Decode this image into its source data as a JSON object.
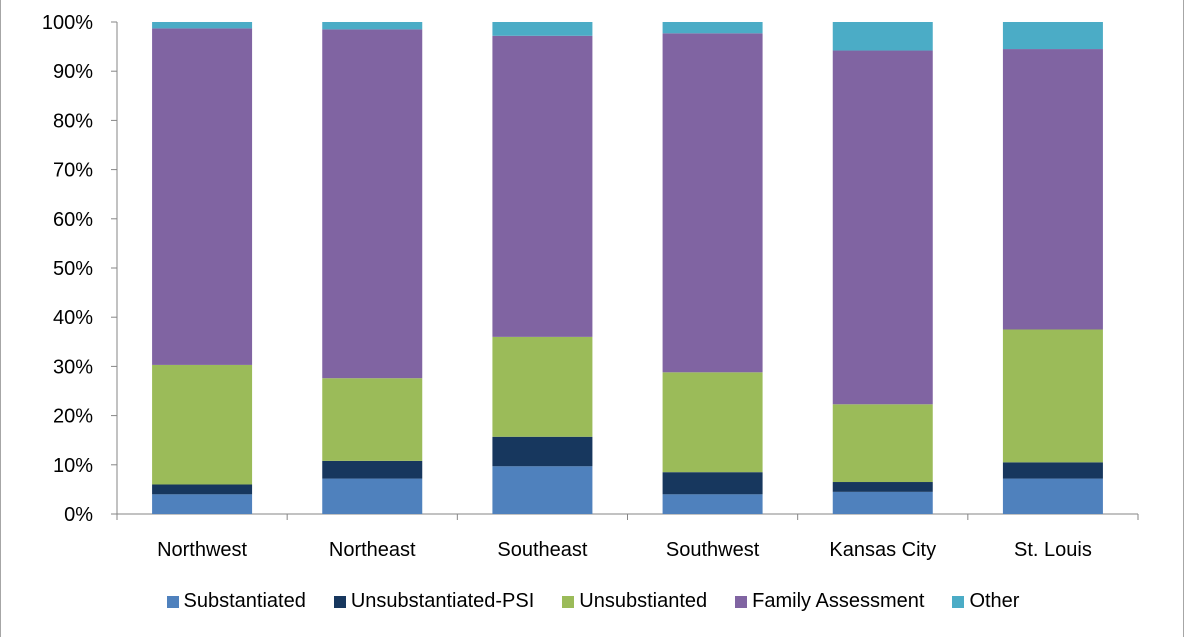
{
  "chart_data": {
    "type": "bar",
    "stacked": true,
    "percent": true,
    "categories": [
      "Northwest",
      "Northeast",
      "Southeast",
      "Southwest",
      "Kansas City",
      "St. Louis"
    ],
    "series": [
      {
        "name": "Substantiated",
        "color": "#4f81bd",
        "values": [
          4,
          7.2,
          9.7,
          4,
          4.5,
          7.2
        ]
      },
      {
        "name": "Unsubstantiated-PSI",
        "color": "#17375e",
        "values": [
          2,
          3.6,
          6,
          4.5,
          2,
          3.3
        ]
      },
      {
        "name": "Unsubstianted",
        "color": "#9bbb59",
        "values": [
          24.3,
          16.8,
          20.3,
          20.3,
          15.8,
          27
        ]
      },
      {
        "name": "Family Assessment",
        "color": "#8064a2",
        "values": [
          68.4,
          70.9,
          61.2,
          68.9,
          71.9,
          57
        ]
      },
      {
        "name": "Other",
        "color": "#4bacc6",
        "values": [
          1.3,
          1.5,
          2.8,
          2.3,
          5.8,
          5.5
        ]
      }
    ],
    "yticks": [
      "0%",
      "10%",
      "20%",
      "30%",
      "40%",
      "50%",
      "60%",
      "70%",
      "80%",
      "90%",
      "100%"
    ],
    "ylim": [
      0,
      100
    ],
    "legend_position": "bottom",
    "grid": false
  },
  "legend": {
    "items": [
      {
        "label": "Substantiated",
        "color": "#4f81bd"
      },
      {
        "label": "Unsubstantiated-PSI",
        "color": "#17375e"
      },
      {
        "label": "Unsubstianted",
        "color": "#9bbb59"
      },
      {
        "label": "Family Assessment",
        "color": "#8064a2"
      },
      {
        "label": "Other",
        "color": "#4bacc6"
      }
    ]
  }
}
